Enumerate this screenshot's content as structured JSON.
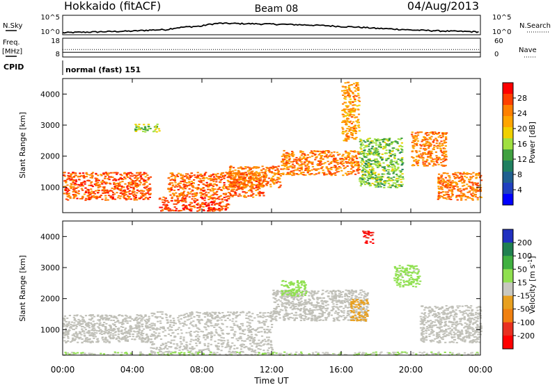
{
  "header": {
    "title_left": "Hokkaido (fitACF)",
    "title_center": "Beam 08",
    "title_right": "04/Aug/2013"
  },
  "time_axis": {
    "label": "Time UT",
    "ticks": [
      "00:00",
      "04:00",
      "08:00",
      "12:00",
      "16:00",
      "20:00",
      "00:00"
    ],
    "range_hours": [
      0,
      24
    ]
  },
  "noise_panel": {
    "left_label": "N.Sky",
    "right_label": "N.Search",
    "left_ticks": [
      "10^5",
      "10^0"
    ],
    "right_ticks": [
      "10^5",
      "10^0"
    ]
  },
  "freq_panel": {
    "left_label_1": "Freq.",
    "left_label_2": "[MHz]",
    "right_label": "Nave",
    "left_ticks": [
      "18",
      "8"
    ],
    "right_ticks": [
      "60",
      "0"
    ]
  },
  "cpid_panel": {
    "label": "CPID",
    "mode_text": "normal (fast) 151"
  },
  "power_panel": {
    "ylabel": "Slant Range [km]",
    "yticks": [
      "1000",
      "2000",
      "3000",
      "4000"
    ],
    "colorbar_label": "Power [dB]",
    "colorbar_ticks": [
      "28",
      "24",
      "20",
      "16",
      "12",
      "8",
      "4"
    ],
    "colorbar_colors": [
      "#ff0000",
      "#ff4000",
      "#ff8000",
      "#ffa500",
      "#f0d000",
      "#a0e040",
      "#40a040",
      "#208060",
      "#206090",
      "#2040c0",
      "#0000ff"
    ]
  },
  "velocity_panel": {
    "ylabel": "Slant Range [km]",
    "yticks": [
      "1000",
      "2000",
      "3000",
      "4000"
    ],
    "colorbar_label": "Velocity [m s",
    "colorbar_label_sup": "-1",
    "colorbar_label_end": "]",
    "colorbar_ticks": [
      "200",
      "100",
      "50",
      "15",
      "-15",
      "-50",
      "-100",
      "-200"
    ],
    "colorbar_colors": [
      "#2030c0",
      "#208050",
      "#40b040",
      "#90e050",
      "#c8c8c0",
      "#e8a020",
      "#f08010",
      "#e83020",
      "#ff0000"
    ],
    "ground_scatter_color": "#c0c0b8"
  },
  "chart_data": [
    {
      "type": "line",
      "title": "N.Sky / N.Search",
      "xlabel": "Time UT",
      "xlim": [
        0,
        24
      ],
      "y_scale": "log",
      "ylim": [
        1,
        100000
      ],
      "series": [
        {
          "x": [
            0,
            2,
            4,
            6,
            8,
            9,
            10,
            12,
            14,
            16,
            18,
            20,
            22,
            24
          ],
          "values": [
            3,
            5,
            8,
            20,
            150,
            800,
            700,
            500,
            300,
            120,
            40,
            15,
            8,
            5
          ]
        }
      ]
    },
    {
      "type": "line",
      "title": "Freq. / Nave",
      "xlabel": "Time UT",
      "xlim": [
        0,
        24
      ],
      "ylim": [
        8,
        18
      ],
      "series": [
        {
          "x": [
            0,
            24
          ],
          "values": [
            10.5,
            10.5
          ]
        },
        {
          "x": [
            0,
            24
          ],
          "values": [
            12,
            12
          ]
        }
      ]
    },
    {
      "type": "heatmap",
      "title": "Power [dB]",
      "xlabel": "Time UT",
      "ylabel": "Slant Range [km]",
      "xlim": [
        0,
        24
      ],
      "ylim": [
        180,
        4500
      ],
      "zlim": [
        0,
        30
      ],
      "regions": [
        {
          "t0": 0.0,
          "t1": 5.0,
          "r0": 600,
          "r1": 1500,
          "value": 26
        },
        {
          "t0": 5.5,
          "t1": 9.5,
          "r0": 250,
          "r1": 700,
          "value": 27
        },
        {
          "t0": 6.0,
          "t1": 11.5,
          "r0": 700,
          "r1": 1500,
          "value": 25
        },
        {
          "t0": 9.5,
          "t1": 12.5,
          "r0": 1000,
          "r1": 1700,
          "value": 24
        },
        {
          "t0": 12.5,
          "t1": 17.0,
          "r0": 1400,
          "r1": 2200,
          "value": 24
        },
        {
          "t0": 17.0,
          "t1": 19.5,
          "r0": 1000,
          "r1": 2600,
          "value": 14
        },
        {
          "t0": 20.0,
          "t1": 22.0,
          "r0": 1700,
          "r1": 2800,
          "value": 24
        },
        {
          "t0": 21.5,
          "t1": 24.0,
          "r0": 600,
          "r1": 1500,
          "value": 24
        },
        {
          "t0": 4.0,
          "t1": 5.5,
          "r0": 2800,
          "r1": 3050,
          "value": 15
        },
        {
          "t0": 16.0,
          "t1": 17.0,
          "r0": 2500,
          "r1": 4400,
          "value": 22
        }
      ]
    },
    {
      "type": "heatmap",
      "title": "Velocity [m s-1]",
      "xlabel": "Time UT",
      "ylabel": "Slant Range [km]",
      "xlim": [
        0,
        24
      ],
      "ylim": [
        180,
        4500
      ],
      "zlim": [
        -250,
        250
      ],
      "regions": [
        {
          "t0": 0.0,
          "t1": 5.0,
          "r0": 600,
          "r1": 1500,
          "value": 0
        },
        {
          "t0": 5.0,
          "t1": 12.0,
          "r0": 300,
          "r1": 1600,
          "value": 0
        },
        {
          "t0": 12.0,
          "t1": 17.5,
          "r0": 1300,
          "r1": 2300,
          "value": 0
        },
        {
          "t0": 12.5,
          "t1": 14.0,
          "r0": 2100,
          "r1": 2600,
          "value": 60
        },
        {
          "t0": 16.5,
          "t1": 17.5,
          "r0": 1300,
          "r1": 2000,
          "value": -70
        },
        {
          "t0": 17.2,
          "t1": 17.8,
          "r0": 3800,
          "r1": 4200,
          "value": -220
        },
        {
          "t0": 19.0,
          "t1": 20.5,
          "r0": 2400,
          "r1": 3100,
          "value": 40
        },
        {
          "t0": 20.5,
          "t1": 24.0,
          "r0": 600,
          "r1": 1800,
          "value": 0
        },
        {
          "t0": 0.0,
          "t1": 24.0,
          "r0": 200,
          "r1": 300,
          "value": 30
        }
      ]
    }
  ]
}
